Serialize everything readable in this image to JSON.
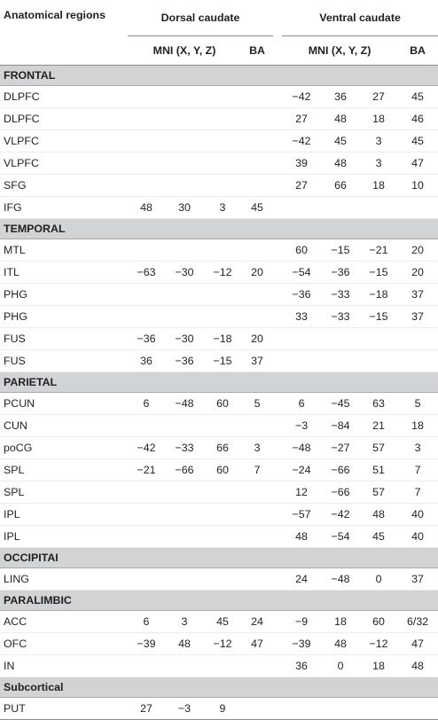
{
  "header": {
    "region_col": "Anatomical regions",
    "group1": "Dorsal caudate",
    "group2": "Ventral caudate",
    "mni": "MNI (X, Y, Z)",
    "ba": "BA"
  },
  "sections": [
    {
      "name": "FRONTAL",
      "rows": [
        {
          "r": "DLPFC",
          "d": [
            "",
            "",
            "",
            ""
          ],
          "v": [
            "−42",
            "36",
            "27",
            "45"
          ]
        },
        {
          "r": "DLPFC",
          "d": [
            "",
            "",
            "",
            ""
          ],
          "v": [
            "27",
            "48",
            "18",
            "46"
          ]
        },
        {
          "r": "VLPFC",
          "d": [
            "",
            "",
            "",
            ""
          ],
          "v": [
            "−42",
            "45",
            "3",
            "45"
          ]
        },
        {
          "r": "VLPFC",
          "d": [
            "",
            "",
            "",
            ""
          ],
          "v": [
            "39",
            "48",
            "3",
            "47"
          ]
        },
        {
          "r": "SFG",
          "d": [
            "",
            "",
            "",
            ""
          ],
          "v": [
            "27",
            "66",
            "18",
            "10"
          ]
        },
        {
          "r": "IFG",
          "d": [
            "48",
            "30",
            "3",
            "45"
          ],
          "v": [
            "",
            "",
            "",
            ""
          ]
        }
      ]
    },
    {
      "name": "TEMPORAL",
      "rows": [
        {
          "r": "MTL",
          "d": [
            "",
            "",
            "",
            ""
          ],
          "v": [
            "60",
            "−15",
            "−21",
            "20"
          ]
        },
        {
          "r": "ITL",
          "d": [
            "−63",
            "−30",
            "−12",
            "20"
          ],
          "v": [
            "−54",
            "−36",
            "−15",
            "20"
          ]
        },
        {
          "r": "PHG",
          "d": [
            "",
            "",
            "",
            ""
          ],
          "v": [
            "−36",
            "−33",
            "−18",
            "37"
          ]
        },
        {
          "r": "PHG",
          "d": [
            "",
            "",
            "",
            ""
          ],
          "v": [
            "33",
            "−33",
            "−15",
            "37"
          ]
        },
        {
          "r": "FUS",
          "d": [
            "−36",
            "−30",
            "−18",
            "20"
          ],
          "v": [
            "",
            "",
            "",
            ""
          ]
        },
        {
          "r": "FUS",
          "d": [
            "36",
            "−36",
            "−15",
            "37"
          ],
          "v": [
            "",
            "",
            "",
            ""
          ]
        }
      ]
    },
    {
      "name": "PARIETAL",
      "rows": [
        {
          "r": "PCUN",
          "d": [
            "6",
            "−48",
            "60",
            "5"
          ],
          "v": [
            "6",
            "−45",
            "63",
            "5"
          ]
        },
        {
          "r": "CUN",
          "d": [
            "",
            "",
            "",
            ""
          ],
          "v": [
            "−3",
            "−84",
            "21",
            "18"
          ]
        },
        {
          "r": "poCG",
          "d": [
            "−42",
            "−33",
            "66",
            "3"
          ],
          "v": [
            "−48",
            "−27",
            "57",
            "3"
          ]
        },
        {
          "r": "SPL",
          "d": [
            "−21",
            "−66",
            "60",
            "7"
          ],
          "v": [
            "−24",
            "−66",
            "51",
            "7"
          ]
        },
        {
          "r": "SPL",
          "d": [
            "",
            "",
            "",
            ""
          ],
          "v": [
            "12",
            "−66",
            "57",
            "7"
          ]
        },
        {
          "r": "IPL",
          "d": [
            "",
            "",
            "",
            ""
          ],
          "v": [
            "−57",
            "−42",
            "48",
            "40"
          ]
        },
        {
          "r": "IPL",
          "d": [
            "",
            "",
            "",
            ""
          ],
          "v": [
            "48",
            "−54",
            "45",
            "40"
          ]
        }
      ]
    },
    {
      "name": "OCCIPITAI",
      "rows": [
        {
          "r": "LING",
          "d": [
            "",
            "",
            "",
            ""
          ],
          "v": [
            "24",
            "−48",
            "0",
            "37"
          ]
        }
      ]
    },
    {
      "name": "PARALIMBIC",
      "rows": [
        {
          "r": "ACC",
          "d": [
            "6",
            "3",
            "45",
            "24"
          ],
          "v": [
            "−9",
            "18",
            "60",
            "6/32"
          ]
        },
        {
          "r": "OFC",
          "d": [
            "−39",
            "48",
            "−12",
            "47"
          ],
          "v": [
            "−39",
            "48",
            "−12",
            "47"
          ]
        },
        {
          "r": "IN",
          "d": [
            "",
            "",
            "",
            ""
          ],
          "v": [
            "36",
            "0",
            "18",
            "48"
          ]
        }
      ]
    },
    {
      "name": "Subcortical",
      "rows": [
        {
          "r": "PUT",
          "d": [
            "27",
            "−3",
            "9",
            ""
          ],
          "v": [
            "",
            "",
            "",
            ""
          ]
        }
      ]
    }
  ]
}
